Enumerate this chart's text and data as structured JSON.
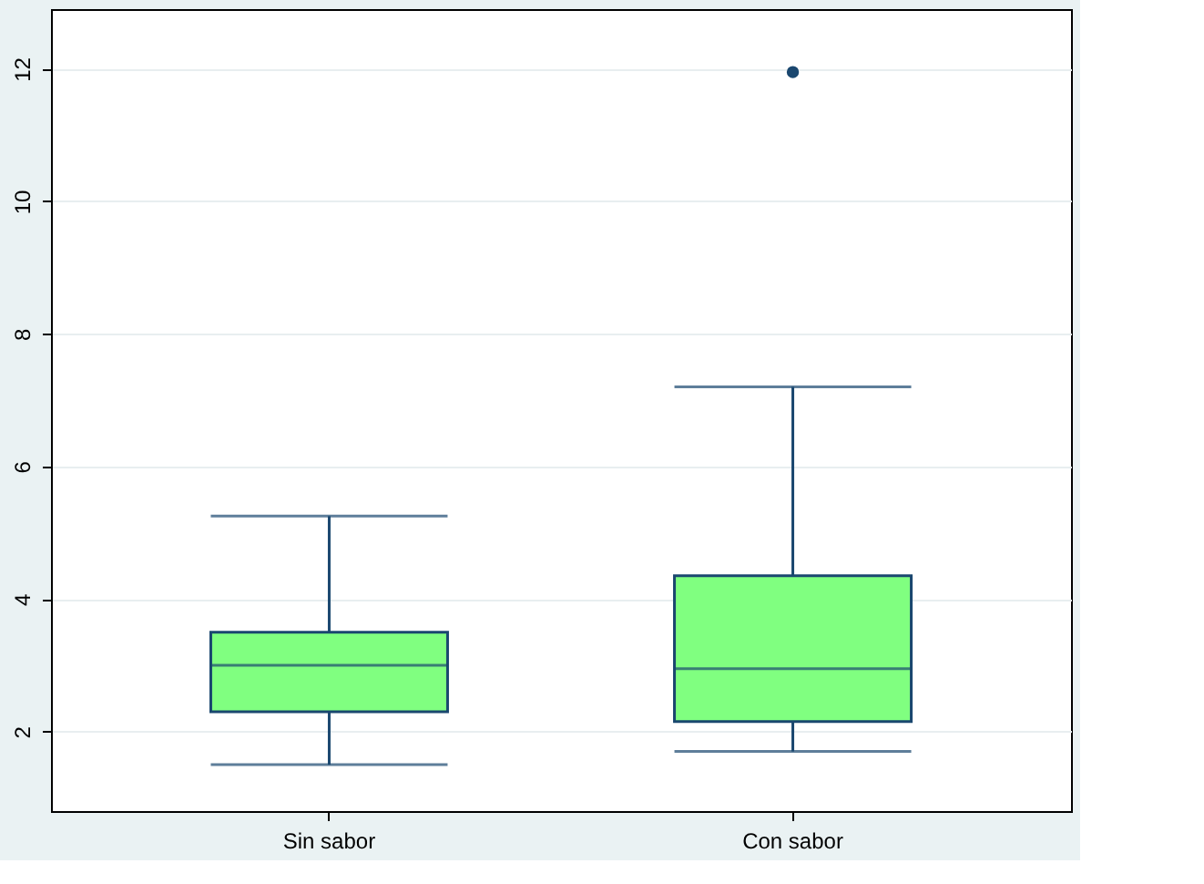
{
  "chart_data": {
    "type": "box",
    "categories": [
      "Sin sabor",
      "Con sabor"
    ],
    "series": [
      {
        "color": "#80ff80",
        "boxes": [
          {
            "low": 1.5,
            "q1": 2.3,
            "median": 3.0,
            "q3": 3.5,
            "high": 5.25
          },
          {
            "low": 1.7,
            "q1": 2.15,
            "median": 2.95,
            "q3": 4.35,
            "high": 7.2,
            "outliers": [
              11.95
            ]
          }
        ]
      }
    ],
    "ylim": [
      0.8,
      12.9
    ],
    "yticks": [
      2,
      4,
      6,
      8,
      10,
      12
    ],
    "grid": "y"
  }
}
